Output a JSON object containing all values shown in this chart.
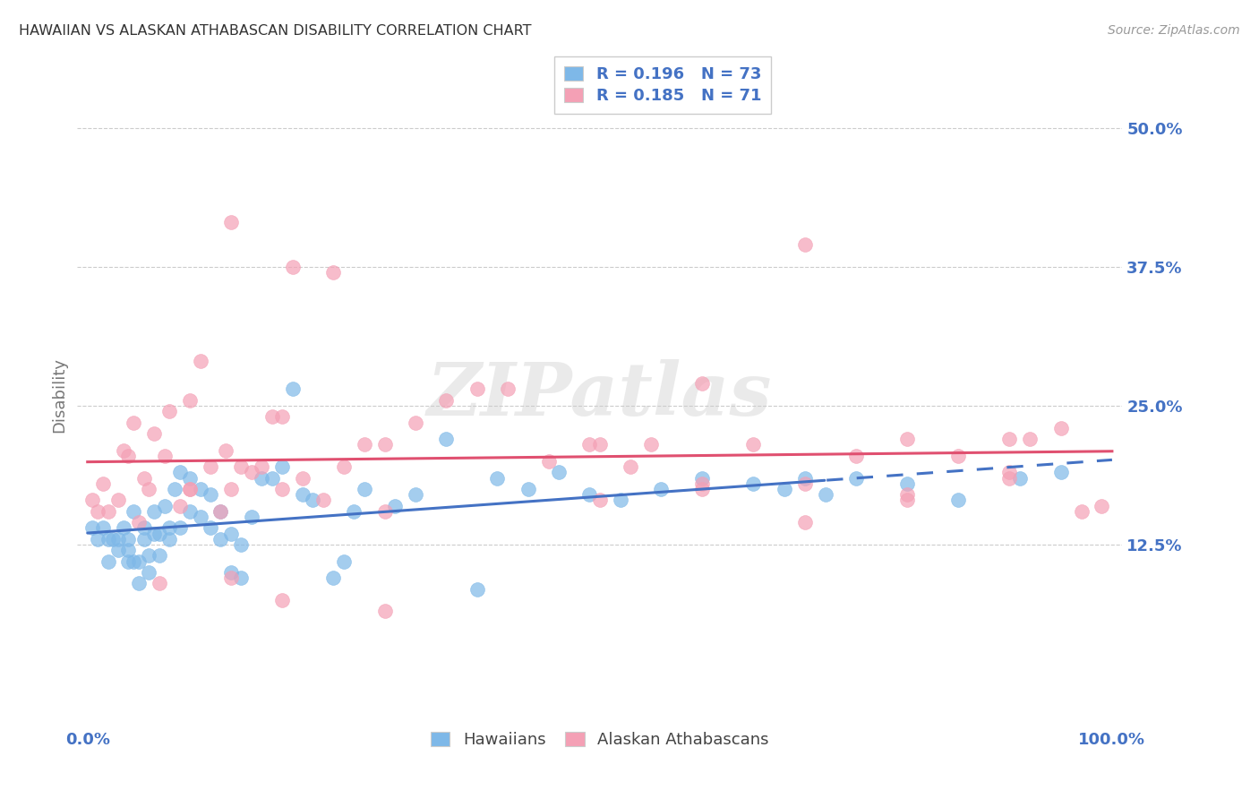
{
  "title": "HAWAIIAN VS ALASKAN ATHABASCAN DISABILITY CORRELATION CHART",
  "source": "Source: ZipAtlas.com",
  "ylabel": "Disability",
  "ytick_labels": [
    "12.5%",
    "25.0%",
    "37.5%",
    "50.0%"
  ],
  "ytick_values": [
    0.125,
    0.25,
    0.375,
    0.5
  ],
  "xlim": [
    -0.01,
    1.01
  ],
  "ylim": [
    -0.04,
    0.56
  ],
  "color_hawaiian": "#7EB8E8",
  "color_athabascan": "#F4A0B5",
  "color_line_hawaiian": "#4472C4",
  "color_line_athabascan": "#E05070",
  "color_tick_labels": "#4472C4",
  "color_ylabel": "#777777",
  "background_color": "#FFFFFF",
  "hawaiian_x": [
    0.005,
    0.01,
    0.015,
    0.02,
    0.02,
    0.025,
    0.03,
    0.03,
    0.035,
    0.04,
    0.04,
    0.04,
    0.045,
    0.045,
    0.05,
    0.05,
    0.055,
    0.055,
    0.06,
    0.06,
    0.065,
    0.065,
    0.07,
    0.07,
    0.075,
    0.08,
    0.08,
    0.085,
    0.09,
    0.09,
    0.1,
    0.1,
    0.11,
    0.11,
    0.12,
    0.12,
    0.13,
    0.13,
    0.14,
    0.14,
    0.15,
    0.15,
    0.16,
    0.17,
    0.18,
    0.19,
    0.2,
    0.21,
    0.22,
    0.24,
    0.25,
    0.26,
    0.27,
    0.3,
    0.32,
    0.35,
    0.38,
    0.4,
    0.43,
    0.46,
    0.49,
    0.52,
    0.56,
    0.6,
    0.65,
    0.68,
    0.7,
    0.72,
    0.75,
    0.8,
    0.85,
    0.91,
    0.95
  ],
  "hawaiian_y": [
    0.14,
    0.13,
    0.14,
    0.11,
    0.13,
    0.13,
    0.12,
    0.13,
    0.14,
    0.11,
    0.12,
    0.13,
    0.11,
    0.155,
    0.09,
    0.11,
    0.13,
    0.14,
    0.1,
    0.115,
    0.135,
    0.155,
    0.115,
    0.135,
    0.16,
    0.13,
    0.14,
    0.175,
    0.14,
    0.19,
    0.155,
    0.185,
    0.15,
    0.175,
    0.14,
    0.17,
    0.13,
    0.155,
    0.1,
    0.135,
    0.095,
    0.125,
    0.15,
    0.185,
    0.185,
    0.195,
    0.265,
    0.17,
    0.165,
    0.095,
    0.11,
    0.155,
    0.175,
    0.16,
    0.17,
    0.22,
    0.085,
    0.185,
    0.175,
    0.19,
    0.17,
    0.165,
    0.175,
    0.185,
    0.18,
    0.175,
    0.185,
    0.17,
    0.185,
    0.18,
    0.165,
    0.185,
    0.19
  ],
  "athabascan_x": [
    0.005,
    0.01,
    0.015,
    0.02,
    0.03,
    0.035,
    0.04,
    0.045,
    0.05,
    0.055,
    0.06,
    0.065,
    0.07,
    0.075,
    0.08,
    0.09,
    0.1,
    0.1,
    0.11,
    0.12,
    0.13,
    0.135,
    0.14,
    0.15,
    0.16,
    0.17,
    0.18,
    0.19,
    0.21,
    0.23,
    0.25,
    0.27,
    0.29,
    0.32,
    0.35,
    0.38,
    0.41,
    0.45,
    0.49,
    0.53,
    0.5,
    0.55,
    0.6,
    0.65,
    0.7,
    0.75,
    0.8,
    0.85,
    0.9,
    0.92,
    0.95,
    0.97,
    0.99,
    0.14,
    0.19,
    0.24,
    0.29,
    0.14,
    0.2,
    0.6,
    0.7,
    0.8,
    0.9,
    0.5,
    0.6,
    0.7,
    0.8,
    0.9,
    0.1,
    0.19,
    0.29
  ],
  "athabascan_y": [
    0.165,
    0.155,
    0.18,
    0.155,
    0.165,
    0.21,
    0.205,
    0.235,
    0.145,
    0.185,
    0.175,
    0.225,
    0.09,
    0.205,
    0.245,
    0.16,
    0.175,
    0.255,
    0.29,
    0.195,
    0.155,
    0.21,
    0.175,
    0.195,
    0.19,
    0.195,
    0.24,
    0.24,
    0.185,
    0.165,
    0.195,
    0.215,
    0.215,
    0.235,
    0.255,
    0.265,
    0.265,
    0.2,
    0.215,
    0.195,
    0.165,
    0.215,
    0.18,
    0.215,
    0.145,
    0.205,
    0.17,
    0.205,
    0.19,
    0.22,
    0.23,
    0.155,
    0.16,
    0.415,
    0.175,
    0.37,
    0.065,
    0.095,
    0.375,
    0.27,
    0.395,
    0.165,
    0.185,
    0.215,
    0.175,
    0.18,
    0.22,
    0.22,
    0.175,
    0.075,
    0.155
  ]
}
